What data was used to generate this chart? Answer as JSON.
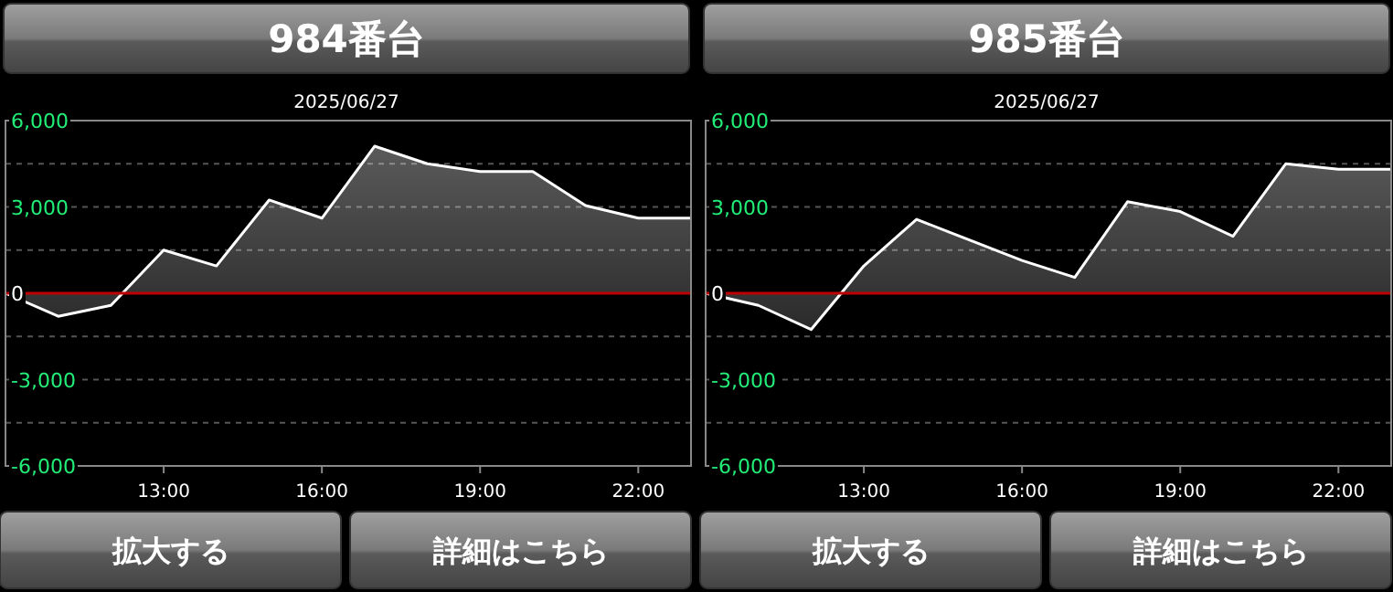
{
  "chart_data": [
    {
      "type": "area",
      "title": "984番台",
      "subtitle": "2025/06/27",
      "x": [
        10,
        11,
        12,
        13,
        14,
        15,
        16,
        17,
        18,
        19,
        20,
        21,
        22,
        23
      ],
      "series": [
        {
          "color": "#ffffff",
          "values": [
            0,
            -800,
            -420,
            1500,
            950,
            3240,
            2610,
            5110,
            4500,
            4230,
            4230,
            3050,
            2610,
            2610
          ]
        }
      ],
      "xlim": [
        10,
        23
      ],
      "xticks": [
        {
          "value": 13,
          "label": "13:00"
        },
        {
          "value": 16,
          "label": "16:00"
        },
        {
          "value": 19,
          "label": "19:00"
        },
        {
          "value": 22,
          "label": "22:00"
        }
      ],
      "ylim": [
        -6000,
        6000
      ],
      "yticks": [
        {
          "value": 6000,
          "label": "6,000"
        },
        {
          "value": 4500,
          "label": null
        },
        {
          "value": 3000,
          "label": "3,000"
        },
        {
          "value": 1500,
          "label": null
        },
        {
          "value": 0,
          "label": "0"
        },
        {
          "value": -1500,
          "label": null
        },
        {
          "value": -3000,
          "label": "-3,000"
        },
        {
          "value": -4500,
          "label": null
        },
        {
          "value": -6000,
          "label": "-6,000"
        }
      ],
      "grid": "y",
      "ref_lines": [
        {
          "axis": "y",
          "value": 0,
          "color": "#c00000"
        }
      ],
      "annotations": [
        "拡大する",
        "詳細はこちら"
      ]
    },
    {
      "type": "area",
      "title": "985番台",
      "subtitle": "2025/06/27",
      "x": [
        10,
        11,
        12,
        13,
        14,
        15,
        16,
        17,
        18,
        19,
        20,
        21,
        22,
        23
      ],
      "series": [
        {
          "color": "#ffffff",
          "values": [
            0,
            -420,
            -1260,
            950,
            2570,
            1850,
            1140,
            550,
            3180,
            2840,
            1980,
            4500,
            4310,
            4310
          ]
        }
      ],
      "xlim": [
        10,
        23
      ],
      "xticks": [
        {
          "value": 13,
          "label": "13:00"
        },
        {
          "value": 16,
          "label": "16:00"
        },
        {
          "value": 19,
          "label": "19:00"
        },
        {
          "value": 22,
          "label": "22:00"
        }
      ],
      "ylim": [
        -6000,
        6000
      ],
      "yticks": [
        {
          "value": 6000,
          "label": "6,000"
        },
        {
          "value": 4500,
          "label": null
        },
        {
          "value": 3000,
          "label": "3,000"
        },
        {
          "value": 1500,
          "label": null
        },
        {
          "value": 0,
          "label": "0"
        },
        {
          "value": -1500,
          "label": null
        },
        {
          "value": -3000,
          "label": "-3,000"
        },
        {
          "value": -4500,
          "label": null
        },
        {
          "value": -6000,
          "label": "-6,000"
        }
      ],
      "grid": "y",
      "ref_lines": [
        {
          "axis": "y",
          "value": 0,
          "color": "#c00000"
        }
      ],
      "annotations": [
        "拡大する",
        "詳細はこちら"
      ]
    }
  ]
}
